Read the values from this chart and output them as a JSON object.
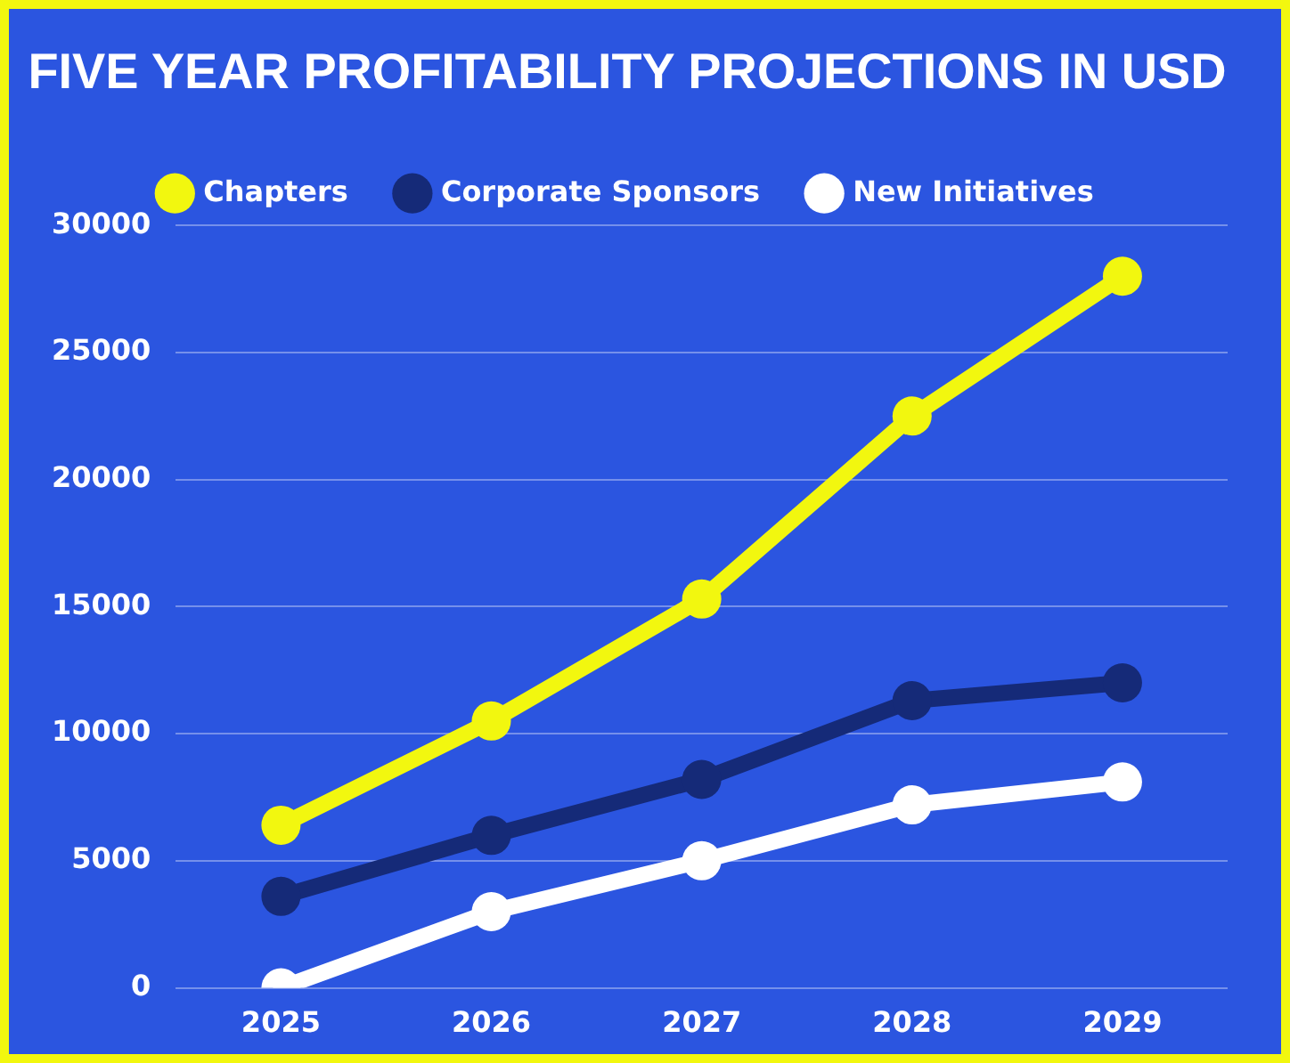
{
  "chart_data": {
    "type": "line",
    "title": "FIVE YEAR PROFITABILITY PROJECTIONS IN USD",
    "categories": [
      "2025",
      "2026",
      "2027",
      "2028",
      "2029"
    ],
    "series": [
      {
        "name": "Chapters",
        "color": "#f2f70f",
        "values": [
          6400,
          10500,
          15300,
          22500,
          28000
        ]
      },
      {
        "name": "Corporate Sponsors",
        "color": "#152a78",
        "values": [
          3600,
          6000,
          8200,
          11300,
          12000
        ]
      },
      {
        "name": "New Initiatives",
        "color": "#ffffff",
        "values": [
          0,
          3000,
          5000,
          7200,
          8100
        ]
      }
    ],
    "ylim": [
      0,
      30000
    ],
    "yticks": [
      0,
      5000,
      10000,
      15000,
      20000,
      25000,
      30000
    ],
    "grid": "y",
    "legend": "top",
    "marker": "circle",
    "line_style": "solid"
  }
}
